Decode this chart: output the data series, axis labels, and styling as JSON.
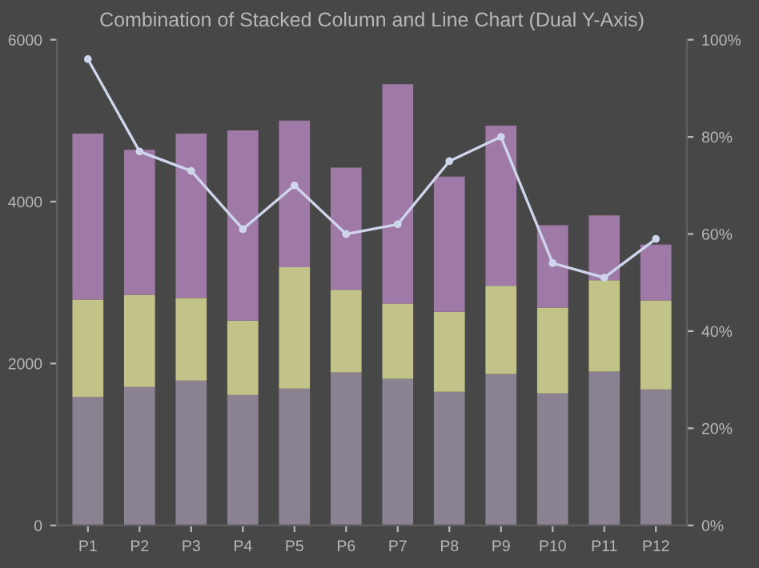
{
  "chart_data": {
    "type": "bar",
    "title": "Combination of Stacked Column and Line Chart (Dual Y-Axis)",
    "stacked": true,
    "categories": [
      "P1",
      "P2",
      "P3",
      "P4",
      "P5",
      "P6",
      "P7",
      "P8",
      "P9",
      "P10",
      "P11",
      "P12"
    ],
    "series": [
      {
        "color": "#8a8290",
        "values": [
          1590,
          1710,
          1790,
          1610,
          1690,
          1890,
          1810,
          1650,
          1870,
          1630,
          1900,
          1680
        ]
      },
      {
        "color": "#c2c389",
        "values": [
          1200,
          1140,
          1020,
          920,
          1500,
          1020,
          930,
          990,
          1090,
          1060,
          1130,
          1100
        ]
      },
      {
        "color": "#9f7aa7",
        "values": [
          2050,
          1790,
          2030,
          2350,
          1810,
          1510,
          2710,
          1670,
          1980,
          1020,
          800,
          690
        ]
      },
      {
        "type": "line",
        "axis": "y2",
        "color": "#cfd6ec",
        "marker": "circle",
        "values": [
          96,
          77,
          73,
          61,
          70,
          60,
          62,
          75,
          80,
          54,
          51,
          59
        ]
      }
    ],
    "ylim": [
      0,
      6000
    ],
    "yticks": [
      0,
      2000,
      4000,
      6000
    ],
    "y2lim": [
      0,
      100
    ],
    "y2ticks": [
      {
        "value": 0,
        "label": "0%"
      },
      {
        "value": 20,
        "label": "20%"
      },
      {
        "value": 40,
        "label": "40%"
      },
      {
        "value": 60,
        "label": "60%"
      },
      {
        "value": 80,
        "label": "80%"
      },
      {
        "value": 100,
        "label": "100%"
      }
    ],
    "grid": false
  }
}
